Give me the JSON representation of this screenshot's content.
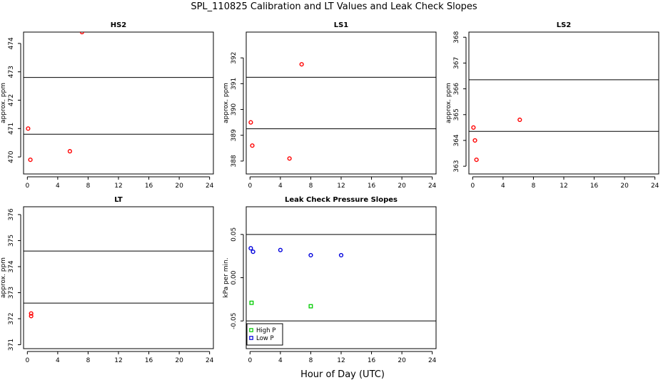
{
  "title": "SPL_110825  Calibration and LT Values and Leak Check Slopes",
  "x_axis_label": "Hour of Day (UTC)",
  "chart_data": [
    {
      "id": "hs2",
      "type": "scatter",
      "title": "HS2",
      "ylabel": "approx. ppm",
      "xlim": [
        -0.5,
        24.5
      ],
      "ylim": [
        469.4,
        474.4
      ],
      "xticks": [
        0,
        4,
        8,
        12,
        16,
        20,
        24
      ],
      "yticks": [
        470,
        471,
        472,
        473,
        474
      ],
      "hlines": [
        470.8,
        472.8
      ],
      "series": [
        {
          "name": "HS2",
          "color": "#ff0000",
          "marker": "circle",
          "x": [
            0.1,
            0.4,
            5.6,
            7.2
          ],
          "y": [
            471.0,
            469.9,
            470.2,
            474.4
          ]
        }
      ]
    },
    {
      "id": "ls1",
      "type": "scatter",
      "title": "LS1",
      "ylabel": "approx. ppm",
      "xlim": [
        -0.5,
        24.5
      ],
      "ylim": [
        387.5,
        393.0
      ],
      "xticks": [
        0,
        4,
        8,
        12,
        16,
        20,
        24
      ],
      "yticks": [
        388,
        389,
        390,
        391,
        392
      ],
      "hlines": [
        389.25,
        391.25
      ],
      "series": [
        {
          "name": "LS1",
          "color": "#ff0000",
          "marker": "circle",
          "x": [
            0.1,
            0.3,
            5.2,
            6.8
          ],
          "y": [
            389.5,
            388.6,
            388.1,
            391.75
          ]
        }
      ]
    },
    {
      "id": "ls2",
      "type": "scatter",
      "title": "LS2",
      "ylabel": "approx. ppm",
      "xlim": [
        -0.5,
        24.5
      ],
      "ylim": [
        362.7,
        368.2
      ],
      "xticks": [
        0,
        4,
        8,
        12,
        16,
        20,
        24
      ],
      "yticks": [
        363,
        364,
        365,
        366,
        367,
        368
      ],
      "hlines": [
        364.35,
        366.35
      ],
      "series": [
        {
          "name": "LS2",
          "color": "#ff0000",
          "marker": "circle",
          "x": [
            0.1,
            0.3,
            0.5,
            6.2
          ],
          "y": [
            364.5,
            364.0,
            363.25,
            364.8
          ]
        }
      ]
    },
    {
      "id": "lt",
      "type": "scatter",
      "title": "LT",
      "ylabel": "approx. ppm",
      "xlim": [
        -0.5,
        24.5
      ],
      "ylim": [
        370.85,
        376.3
      ],
      "xticks": [
        0,
        4,
        8,
        12,
        16,
        20,
        24
      ],
      "yticks": [
        371,
        372,
        373,
        374,
        375,
        376
      ],
      "hlines": [
        372.6,
        374.6
      ],
      "series": [
        {
          "name": "LT",
          "color": "#ff0000",
          "marker": "circle",
          "x": [
            0.5,
            0.5
          ],
          "y": [
            372.2,
            372.1
          ]
        }
      ]
    },
    {
      "id": "leak",
      "type": "scatter",
      "title": "Leak Check Pressure Slopes",
      "ylabel": "kPa per min.",
      "xlim": [
        -0.5,
        24.5
      ],
      "ylim": [
        -0.082,
        0.082
      ],
      "xticks": [
        0,
        4,
        8,
        12,
        16,
        20,
        24
      ],
      "yticks": [
        -0.05,
        0.0,
        0.05
      ],
      "ytick_labels": [
        "-0.05",
        "0.00",
        "0.05"
      ],
      "hlines": [
        -0.05,
        0.05
      ],
      "legend": {
        "position": "bottom-left",
        "entries": [
          "High P",
          "Low P"
        ]
      },
      "series": [
        {
          "name": "High P",
          "color": "#00cc00",
          "marker": "square",
          "x": [
            0.2,
            8.0
          ],
          "y": [
            -0.029,
            -0.033
          ]
        },
        {
          "name": "Low P",
          "color": "#0000dd",
          "marker": "circle",
          "x": [
            0.1,
            0.4,
            4.0,
            8.0,
            12.0
          ],
          "y": [
            0.034,
            0.03,
            0.032,
            0.026,
            0.026
          ]
        }
      ]
    }
  ]
}
